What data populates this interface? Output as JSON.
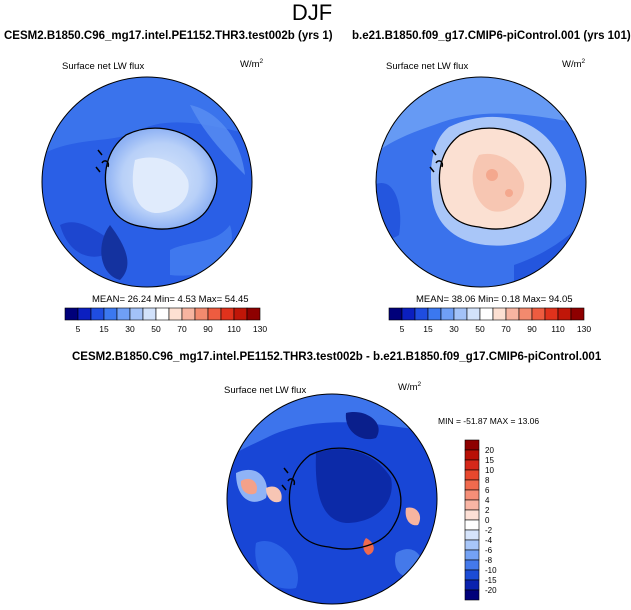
{
  "main_title": "DJF",
  "panels": [
    {
      "title": "CESM2.B1850.C96_mg17.intel.PE1152.THR3.test002b (yrs 1)",
      "variable": "Surface net LW flux",
      "units": "W/m",
      "units_exp": "2",
      "stats": "MEAN=  26.24  Min=   4.53  Max=  54.45"
    },
    {
      "title": "b.e21.B1850.f09_g17.CMIP6-piControl.001 (yrs 101)",
      "variable": "Surface net LW flux",
      "units": "W/m",
      "units_exp": "2",
      "stats": "MEAN=  38.06  Min=   0.18  Max=  94.05"
    },
    {
      "title": "CESM2.B1850.C96_mg17.intel.PE1152.THR3.test002b - b.e21.B1850.f09_g17.CMIP6-piControl.001",
      "variable": "Surface net LW flux",
      "units": "W/m",
      "units_exp": "2",
      "stats": "MIN = -51.87  MAX =  13.06"
    }
  ],
  "colorbar_h": {
    "labels": [
      "5",
      "15",
      "30",
      "50",
      "70",
      "90",
      "110",
      "130"
    ],
    "colors": [
      "#00007a",
      "#0b1fc0",
      "#1f4de0",
      "#3b78f0",
      "#6f9ff6",
      "#a3c2f8",
      "#d2e2fb",
      "#ffffff",
      "#fde0d2",
      "#f7b4a0",
      "#f38a6e",
      "#ee5c40",
      "#e0321c",
      "#c01608",
      "#8e0000"
    ]
  },
  "colorbar_v": {
    "labels": [
      "20",
      "15",
      "10",
      "8",
      "6",
      "4",
      "2",
      "0",
      "-2",
      "-4",
      "-6",
      "-8",
      "-10",
      "-15",
      "-20"
    ],
    "colors": [
      "#8e0000",
      "#b81006",
      "#d5281a",
      "#e8482e",
      "#f06a4e",
      "#f58f78",
      "#f9b5a4",
      "#fde0d6",
      "#ffffff",
      "#d6e4fb",
      "#a8c6f8",
      "#74a2f4",
      "#4479ea",
      "#1c4cd6",
      "#0a22ae",
      "#00007a"
    ]
  },
  "chart_data": [
    {
      "type": "heatmap",
      "title": "CESM2.B1850.C96_mg17.intel.PE1152.THR3.test002b (yrs 1)",
      "variable": "Surface net LW flux",
      "units": "W/m2",
      "projection": "south polar stereographic",
      "mean": 26.24,
      "min": 4.53,
      "max": 54.45,
      "levels": [
        5,
        10,
        15,
        20,
        30,
        40,
        50,
        60,
        70,
        80,
        90,
        100,
        110,
        120,
        130
      ]
    },
    {
      "type": "heatmap",
      "title": "b.e21.B1850.f09_g17.CMIP6-piControl.001 (yrs 101)",
      "variable": "Surface net LW flux",
      "units": "W/m2",
      "projection": "south polar stereographic",
      "mean": 38.06,
      "min": 0.18,
      "max": 94.05,
      "levels": [
        5,
        10,
        15,
        20,
        30,
        40,
        50,
        60,
        70,
        80,
        90,
        100,
        110,
        120,
        130
      ]
    },
    {
      "type": "heatmap",
      "title": "CESM2.B1850.C96_mg17.intel.PE1152.THR3.test002b - b.e21.B1850.f09_g17.CMIP6-piControl.001",
      "variable": "Surface net LW flux",
      "units": "W/m2",
      "projection": "south polar stereographic",
      "min": -51.87,
      "max": 13.06,
      "levels": [
        -20,
        -15,
        -10,
        -8,
        -6,
        -4,
        -2,
        0,
        2,
        4,
        6,
        8,
        10,
        15,
        20
      ]
    }
  ]
}
